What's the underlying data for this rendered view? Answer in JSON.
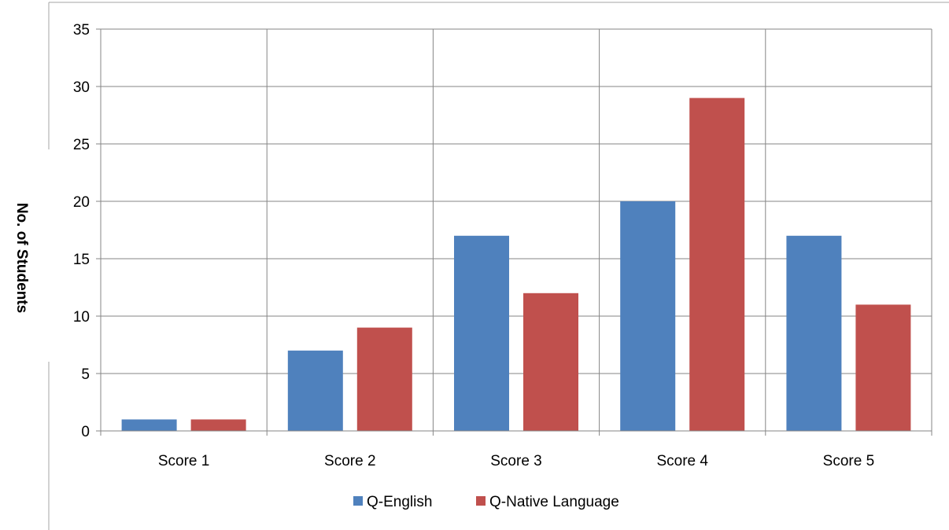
{
  "chart_data": {
    "type": "bar",
    "title": "",
    "xlabel": "",
    "ylabel": "No. of Students",
    "categories": [
      "Score 1",
      "Score 2",
      "Score 3",
      "Score 4",
      "Score 5"
    ],
    "series": [
      {
        "name": "Q-English",
        "color": "#4F81BD",
        "values": [
          1,
          7,
          17,
          20,
          17
        ]
      },
      {
        "name": "Q-Native Language",
        "color": "#C0504D",
        "values": [
          1,
          9,
          12,
          29,
          11
        ]
      }
    ],
    "ylim": [
      0,
      35
    ],
    "yticks": [
      0,
      5,
      10,
      15,
      20,
      25,
      30,
      35
    ],
    "grid": {
      "horizontal": true,
      "vertical": true
    },
    "legend": "bottom-center"
  }
}
